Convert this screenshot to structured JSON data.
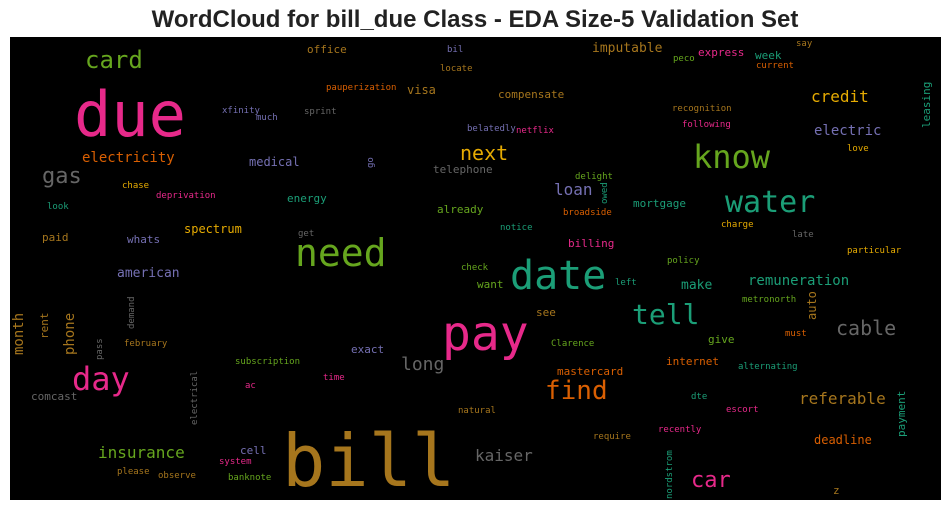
{
  "title": "WordCloud for bill_due Class - EDA Size-5 Validation Set",
  "colors": {
    "background": "#000000",
    "pink": "#e7298a",
    "gold": "#a6761d",
    "teal": "#1b9e77",
    "green": "#66a61e",
    "orange": "#d95f02",
    "purple": "#7570b3",
    "yellow": "#e6ab02",
    "gray": "#666666"
  },
  "words": [
    {
      "text": "bill",
      "color": "gold"
    },
    {
      "text": "due",
      "color": "pink"
    },
    {
      "text": "pay",
      "color": "pink"
    },
    {
      "text": "date",
      "color": "teal"
    },
    {
      "text": "need",
      "color": "green"
    },
    {
      "text": "know",
      "color": "green"
    },
    {
      "text": "water",
      "color": "teal"
    },
    {
      "text": "day",
      "color": "pink"
    },
    {
      "text": "tell",
      "color": "teal"
    },
    {
      "text": "card",
      "color": "green"
    },
    {
      "text": "find",
      "color": "orange"
    },
    {
      "text": "car",
      "color": "pink"
    },
    {
      "text": "cable",
      "color": "gray"
    },
    {
      "text": "gas",
      "color": "gray"
    },
    {
      "text": "next",
      "color": "yellow"
    },
    {
      "text": "long",
      "color": "gray"
    },
    {
      "text": "credit",
      "color": "yellow"
    },
    {
      "text": "referable",
      "color": "gold"
    },
    {
      "text": "insurance",
      "color": "green"
    },
    {
      "text": "kaiser",
      "color": "gray"
    },
    {
      "text": "loan",
      "color": "purple"
    },
    {
      "text": "electric",
      "color": "purple"
    },
    {
      "text": "electricity",
      "color": "orange"
    },
    {
      "text": "remuneration",
      "color": "teal"
    },
    {
      "text": "phone",
      "color": "gold"
    },
    {
      "text": "month",
      "color": "gold"
    },
    {
      "text": "american",
      "color": "purple"
    },
    {
      "text": "make",
      "color": "teal"
    },
    {
      "text": "imputable",
      "color": "gold"
    },
    {
      "text": "visa",
      "color": "gold"
    },
    {
      "text": "medical",
      "color": "purple"
    },
    {
      "text": "deadline",
      "color": "orange"
    },
    {
      "text": "auto",
      "color": "gold"
    },
    {
      "text": "spectrum",
      "color": "yellow"
    },
    {
      "text": "mastercard",
      "color": "orange"
    },
    {
      "text": "payment",
      "color": "teal"
    },
    {
      "text": "leasing",
      "color": "teal"
    },
    {
      "text": "express",
      "color": "pink"
    },
    {
      "text": "office",
      "color": "gold"
    },
    {
      "text": "energy",
      "color": "teal"
    },
    {
      "text": "compensate",
      "color": "gold"
    },
    {
      "text": "telephone",
      "color": "gray"
    },
    {
      "text": "week",
      "color": "teal"
    },
    {
      "text": "already",
      "color": "green"
    },
    {
      "text": "mortgage",
      "color": "teal"
    },
    {
      "text": "billing",
      "color": "pink"
    },
    {
      "text": "internet",
      "color": "orange"
    },
    {
      "text": "exact",
      "color": "purple"
    },
    {
      "text": "whats",
      "color": "purple"
    },
    {
      "text": "paid",
      "color": "gold"
    },
    {
      "text": "cell",
      "color": "purple"
    },
    {
      "text": "comcast",
      "color": "gray"
    },
    {
      "text": "rent",
      "color": "gold"
    },
    {
      "text": "give",
      "color": "green"
    },
    {
      "text": "see",
      "color": "gold"
    },
    {
      "text": "want",
      "color": "green"
    },
    {
      "text": "z",
      "color": "gold"
    },
    {
      "text": "escort",
      "color": "pink"
    },
    {
      "text": "must",
      "color": "orange"
    },
    {
      "text": "chase",
      "color": "yellow"
    },
    {
      "text": "deprivation",
      "color": "pink"
    },
    {
      "text": "look",
      "color": "teal"
    },
    {
      "text": "get",
      "color": "gray"
    },
    {
      "text": "notice",
      "color": "teal"
    },
    {
      "text": "delight",
      "color": "green"
    },
    {
      "text": "broadside",
      "color": "orange"
    },
    {
      "text": "charge",
      "color": "yellow"
    },
    {
      "text": "late",
      "color": "gray"
    },
    {
      "text": "particular",
      "color": "yellow"
    },
    {
      "text": "policy",
      "color": "green"
    },
    {
      "text": "check",
      "color": "green"
    },
    {
      "text": "left",
      "color": "teal"
    },
    {
      "text": "metronorth",
      "color": "green"
    },
    {
      "text": "february",
      "color": "gold"
    },
    {
      "text": "subscription",
      "color": "green"
    },
    {
      "text": "ac",
      "color": "pink"
    },
    {
      "text": "time",
      "color": "pink"
    },
    {
      "text": "Clarence",
      "color": "green"
    },
    {
      "text": "alternating",
      "color": "teal"
    },
    {
      "text": "dte",
      "color": "teal"
    },
    {
      "text": "natural",
      "color": "gold"
    },
    {
      "text": "require",
      "color": "gold"
    },
    {
      "text": "recently",
      "color": "pink"
    },
    {
      "text": "system",
      "color": "pink"
    },
    {
      "text": "please",
      "color": "gold"
    },
    {
      "text": "observe",
      "color": "gold"
    },
    {
      "text": "banknote",
      "color": "green"
    },
    {
      "text": "pauperization",
      "color": "orange"
    },
    {
      "text": "sprint",
      "color": "gray"
    },
    {
      "text": "xfinity",
      "color": "purple"
    },
    {
      "text": "much",
      "color": "purple"
    },
    {
      "text": "belatedly",
      "color": "purple"
    },
    {
      "text": "netflix",
      "color": "pink"
    },
    {
      "text": "locate",
      "color": "gold"
    },
    {
      "text": "bil",
      "color": "purple"
    },
    {
      "text": "peco",
      "color": "green"
    },
    {
      "text": "current",
      "color": "orange"
    },
    {
      "text": "say",
      "color": "gold"
    },
    {
      "text": "recognition",
      "color": "gold"
    },
    {
      "text": "following",
      "color": "pink"
    },
    {
      "text": "love",
      "color": "yellow"
    },
    {
      "text": "go",
      "color": "purple"
    },
    {
      "text": "owed",
      "color": "teal"
    },
    {
      "text": "demand",
      "color": "gray"
    },
    {
      "text": "pass",
      "color": "gray"
    },
    {
      "text": "electrical",
      "color": "gray"
    },
    {
      "text": "nordstrom",
      "color": "teal"
    }
  ]
}
